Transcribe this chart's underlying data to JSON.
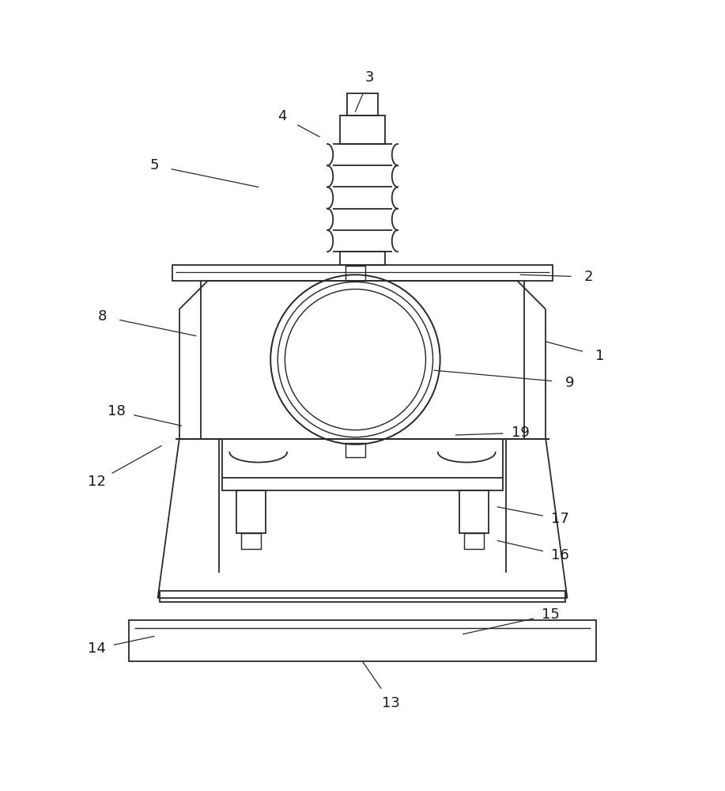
{
  "bg_color": "#ffffff",
  "line_color": "#2a2a2a",
  "lw": 1.3,
  "fig_width": 9.17,
  "fig_height": 10.0,
  "labels_info": {
    "1": [
      0.83,
      0.555,
      0.755,
      0.575
    ],
    "2": [
      0.815,
      0.665,
      0.72,
      0.668
    ],
    "3": [
      0.51,
      0.942,
      0.49,
      0.895
    ],
    "4": [
      0.388,
      0.888,
      0.44,
      0.86
    ],
    "5": [
      0.21,
      0.82,
      0.355,
      0.79
    ],
    "8": [
      0.138,
      0.61,
      0.268,
      0.583
    ],
    "9": [
      0.788,
      0.518,
      0.6,
      0.535
    ],
    "12": [
      0.13,
      0.38,
      0.22,
      0.43
    ],
    "13": [
      0.54,
      0.072,
      0.5,
      0.13
    ],
    "14": [
      0.13,
      0.148,
      0.21,
      0.165
    ],
    "15": [
      0.762,
      0.195,
      0.64,
      0.168
    ],
    "16": [
      0.775,
      0.278,
      0.688,
      0.298
    ],
    "17": [
      0.775,
      0.328,
      0.688,
      0.345
    ],
    "18": [
      0.158,
      0.478,
      0.248,
      0.458
    ],
    "19": [
      0.72,
      0.448,
      0.63,
      0.445
    ]
  }
}
